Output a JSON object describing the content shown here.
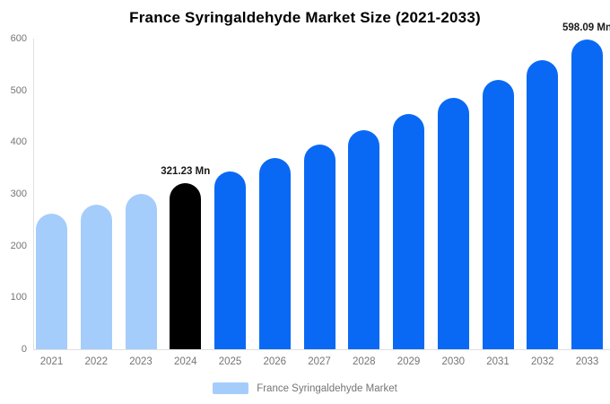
{
  "title": "France Syringaldehyde Market Size (2021-2033)",
  "legend": {
    "label": "France Syringaldehyde Market",
    "swatch_color": "#a5cdfb"
  },
  "colors": {
    "historical": "#a5cdfb",
    "highlight": "#000000",
    "forecast": "#0a69f4",
    "axis_line": "#e0e0e0",
    "tick_text": "#757575",
    "title_text": "#000000"
  },
  "chart_data": {
    "type": "bar",
    "title": "France Syringaldehyde Market Size (2021-2033)",
    "xlabel": "",
    "ylabel": "",
    "ylim": [
      0,
      600
    ],
    "yticks": [
      0,
      100,
      200,
      300,
      400,
      500,
      600
    ],
    "grid": false,
    "legend_position": "bottom",
    "legend_entries": [
      "France Syringaldehyde Market"
    ],
    "categories": [
      "2021",
      "2022",
      "2023",
      "2024",
      "2025",
      "2026",
      "2027",
      "2028",
      "2029",
      "2030",
      "2031",
      "2032",
      "2033"
    ],
    "values": [
      261.1,
      279.8,
      299.8,
      321.23,
      344.2,
      368.8,
      395.2,
      423.4,
      453.7,
      486.2,
      520.9,
      558.2,
      598.09
    ],
    "points": [
      {
        "year": "2021",
        "value": 261.1,
        "color_key": "historical",
        "label": ""
      },
      {
        "year": "2022",
        "value": 279.8,
        "color_key": "historical",
        "label": ""
      },
      {
        "year": "2023",
        "value": 299.8,
        "color_key": "historical",
        "label": ""
      },
      {
        "year": "2024",
        "value": 321.23,
        "color_key": "highlight",
        "label": "321.23 Mn"
      },
      {
        "year": "2025",
        "value": 344.2,
        "color_key": "forecast",
        "label": ""
      },
      {
        "year": "2026",
        "value": 368.8,
        "color_key": "forecast",
        "label": ""
      },
      {
        "year": "2027",
        "value": 395.2,
        "color_key": "forecast",
        "label": ""
      },
      {
        "year": "2028",
        "value": 423.4,
        "color_key": "forecast",
        "label": ""
      },
      {
        "year": "2029",
        "value": 453.7,
        "color_key": "forecast",
        "label": ""
      },
      {
        "year": "2030",
        "value": 486.2,
        "color_key": "forecast",
        "label": ""
      },
      {
        "year": "2031",
        "value": 520.9,
        "color_key": "forecast",
        "label": ""
      },
      {
        "year": "2032",
        "value": 558.2,
        "color_key": "forecast",
        "label": ""
      },
      {
        "year": "2033",
        "value": 598.09,
        "color_key": "forecast",
        "label": "598.09 Mn"
      }
    ],
    "annotations": [
      {
        "category": "2024",
        "text": "321.23 Mn"
      },
      {
        "category": "2033",
        "text": "598.09 Mn"
      }
    ]
  }
}
